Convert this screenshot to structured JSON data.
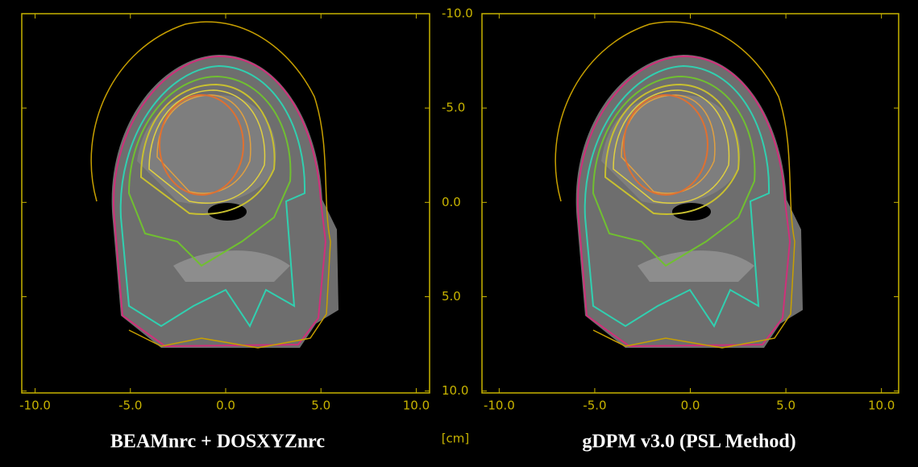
{
  "chart_data": [
    {
      "type": "image",
      "title": "BEAMnrc + DOSXYZnrc",
      "unit_label": "[cm]",
      "xlim": [
        -10.7,
        10.7
      ],
      "ylim": [
        10.1,
        -10.0
      ],
      "xticks": [
        {
          "value": -10,
          "label": "-10.0"
        },
        {
          "value": -5,
          "label": "-5.0"
        },
        {
          "value": 0,
          "label": "0.0"
        },
        {
          "value": 5,
          "label": "5.0"
        },
        {
          "value": 10,
          "label": "10.0"
        }
      ],
      "yticks": [
        {
          "value": -10,
          "label": "-10.0"
        },
        {
          "value": -5,
          "label": "-5.0"
        },
        {
          "value": 0,
          "label": "0.0"
        },
        {
          "value": 5,
          "label": "5.0"
        },
        {
          "value": 10,
          "label": "10.0"
        }
      ],
      "color": "#c8b400"
    },
    {
      "type": "image",
      "title": "gDPM v3.0 (PSL Method)",
      "xlim": [
        -10.9,
        10.9
      ],
      "ylim": [
        10.1,
        -10.0
      ],
      "xticks": [
        {
          "value": -10,
          "label": "-10.0"
        },
        {
          "value": -5,
          "label": "-5.0"
        },
        {
          "value": 0,
          "label": "0.0"
        },
        {
          "value": 5,
          "label": "5.0"
        },
        {
          "value": 10,
          "label": "10.0"
        }
      ],
      "color": "#c8b400"
    }
  ]
}
